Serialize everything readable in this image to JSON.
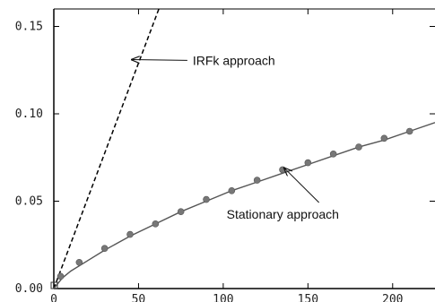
{
  "chart_data": {
    "type": "line",
    "title": "",
    "xlabel": "",
    "ylabel": "",
    "xlim": [
      0,
      225
    ],
    "ylim": [
      0,
      0.16
    ],
    "grid": false,
    "xticks": [
      0,
      50,
      100,
      150,
      200
    ],
    "xtick_labels": [
      "0",
      "50",
      "100",
      "150",
      "200"
    ],
    "yticks": [
      0,
      0.05,
      0.1,
      0.15
    ],
    "ytick_labels": [
      "0.00",
      "0.05",
      "0.10",
      "0.15"
    ],
    "series": [
      {
        "style": "dashed",
        "color": "#000000",
        "x": [
          0,
          62
        ],
        "y": [
          0,
          0.16
        ]
      },
      {
        "style": "solid",
        "color": "#555555",
        "x": [
          0,
          5,
          10,
          20,
          30,
          45,
          60,
          75,
          90,
          105,
          120,
          135,
          150,
          165,
          180,
          195,
          210,
          225
        ],
        "y": [
          0,
          0.006,
          0.01,
          0.016,
          0.022,
          0.03,
          0.037,
          0.044,
          0.05,
          0.056,
          0.061,
          0.066,
          0.071,
          0.076,
          0.081,
          0.085,
          0.09,
          0.095
        ]
      },
      {
        "style": "markers",
        "color": "#777777",
        "x": [
          0,
          4,
          15,
          30,
          45,
          60,
          75,
          90,
          105,
          120,
          135,
          150,
          165,
          180,
          195,
          210
        ],
        "y": [
          0,
          0.007,
          0.015,
          0.023,
          0.031,
          0.037,
          0.044,
          0.051,
          0.056,
          0.062,
          0.068,
          0.072,
          0.077,
          0.081,
          0.086,
          0.09
        ]
      }
    ],
    "annotations": [
      {
        "text": "IRFk approach",
        "x": 82,
        "y": 0.128,
        "arrow_to": [
          46,
          0.131
        ]
      },
      {
        "text": "Stationary approach",
        "x": 102,
        "y": 0.04,
        "arrow_to": [
          136,
          0.069
        ]
      }
    ]
  }
}
